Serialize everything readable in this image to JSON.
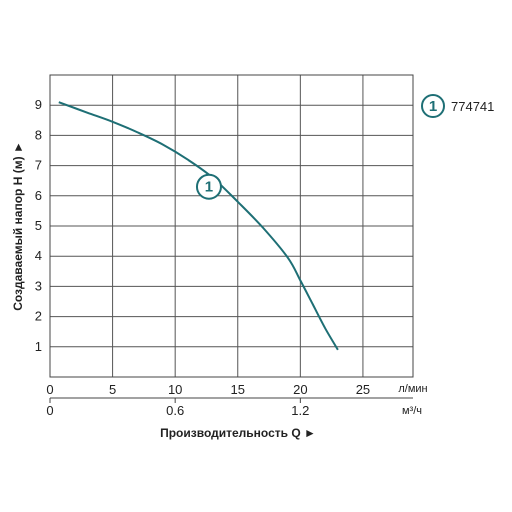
{
  "chart_data": {
    "type": "line",
    "x_primary": {
      "ticks": [
        0,
        5,
        10,
        15,
        20,
        25
      ],
      "unit": "л/мин",
      "range": [
        0,
        29
      ]
    },
    "x_secondary": {
      "ticks": [
        "0",
        "0.6",
        "1.2"
      ],
      "tick_values": [
        0,
        0.6,
        1.2
      ],
      "unit": "м³/ч"
    },
    "xlabel": "Производительность Q ►",
    "ylabel": "Создаваемый напор H (м) ►",
    "yticks": [
      1,
      2,
      3,
      4,
      5,
      6,
      7,
      8,
      9
    ],
    "ylim": [
      0,
      10
    ],
    "grid": true,
    "series": [
      {
        "name": "774741",
        "marker_label": "1",
        "x": [
          0.7,
          3,
          5,
          7,
          9,
          11,
          13,
          15,
          17,
          19,
          20,
          21,
          22,
          23
        ],
        "y": [
          9.1,
          8.75,
          8.45,
          8.1,
          7.7,
          7.2,
          6.6,
          5.8,
          4.95,
          3.95,
          3.2,
          2.4,
          1.6,
          0.9
        ],
        "color": "#1e6f75"
      }
    ],
    "legend": {
      "position": "right",
      "marker_label": "1",
      "label": "774741"
    }
  }
}
